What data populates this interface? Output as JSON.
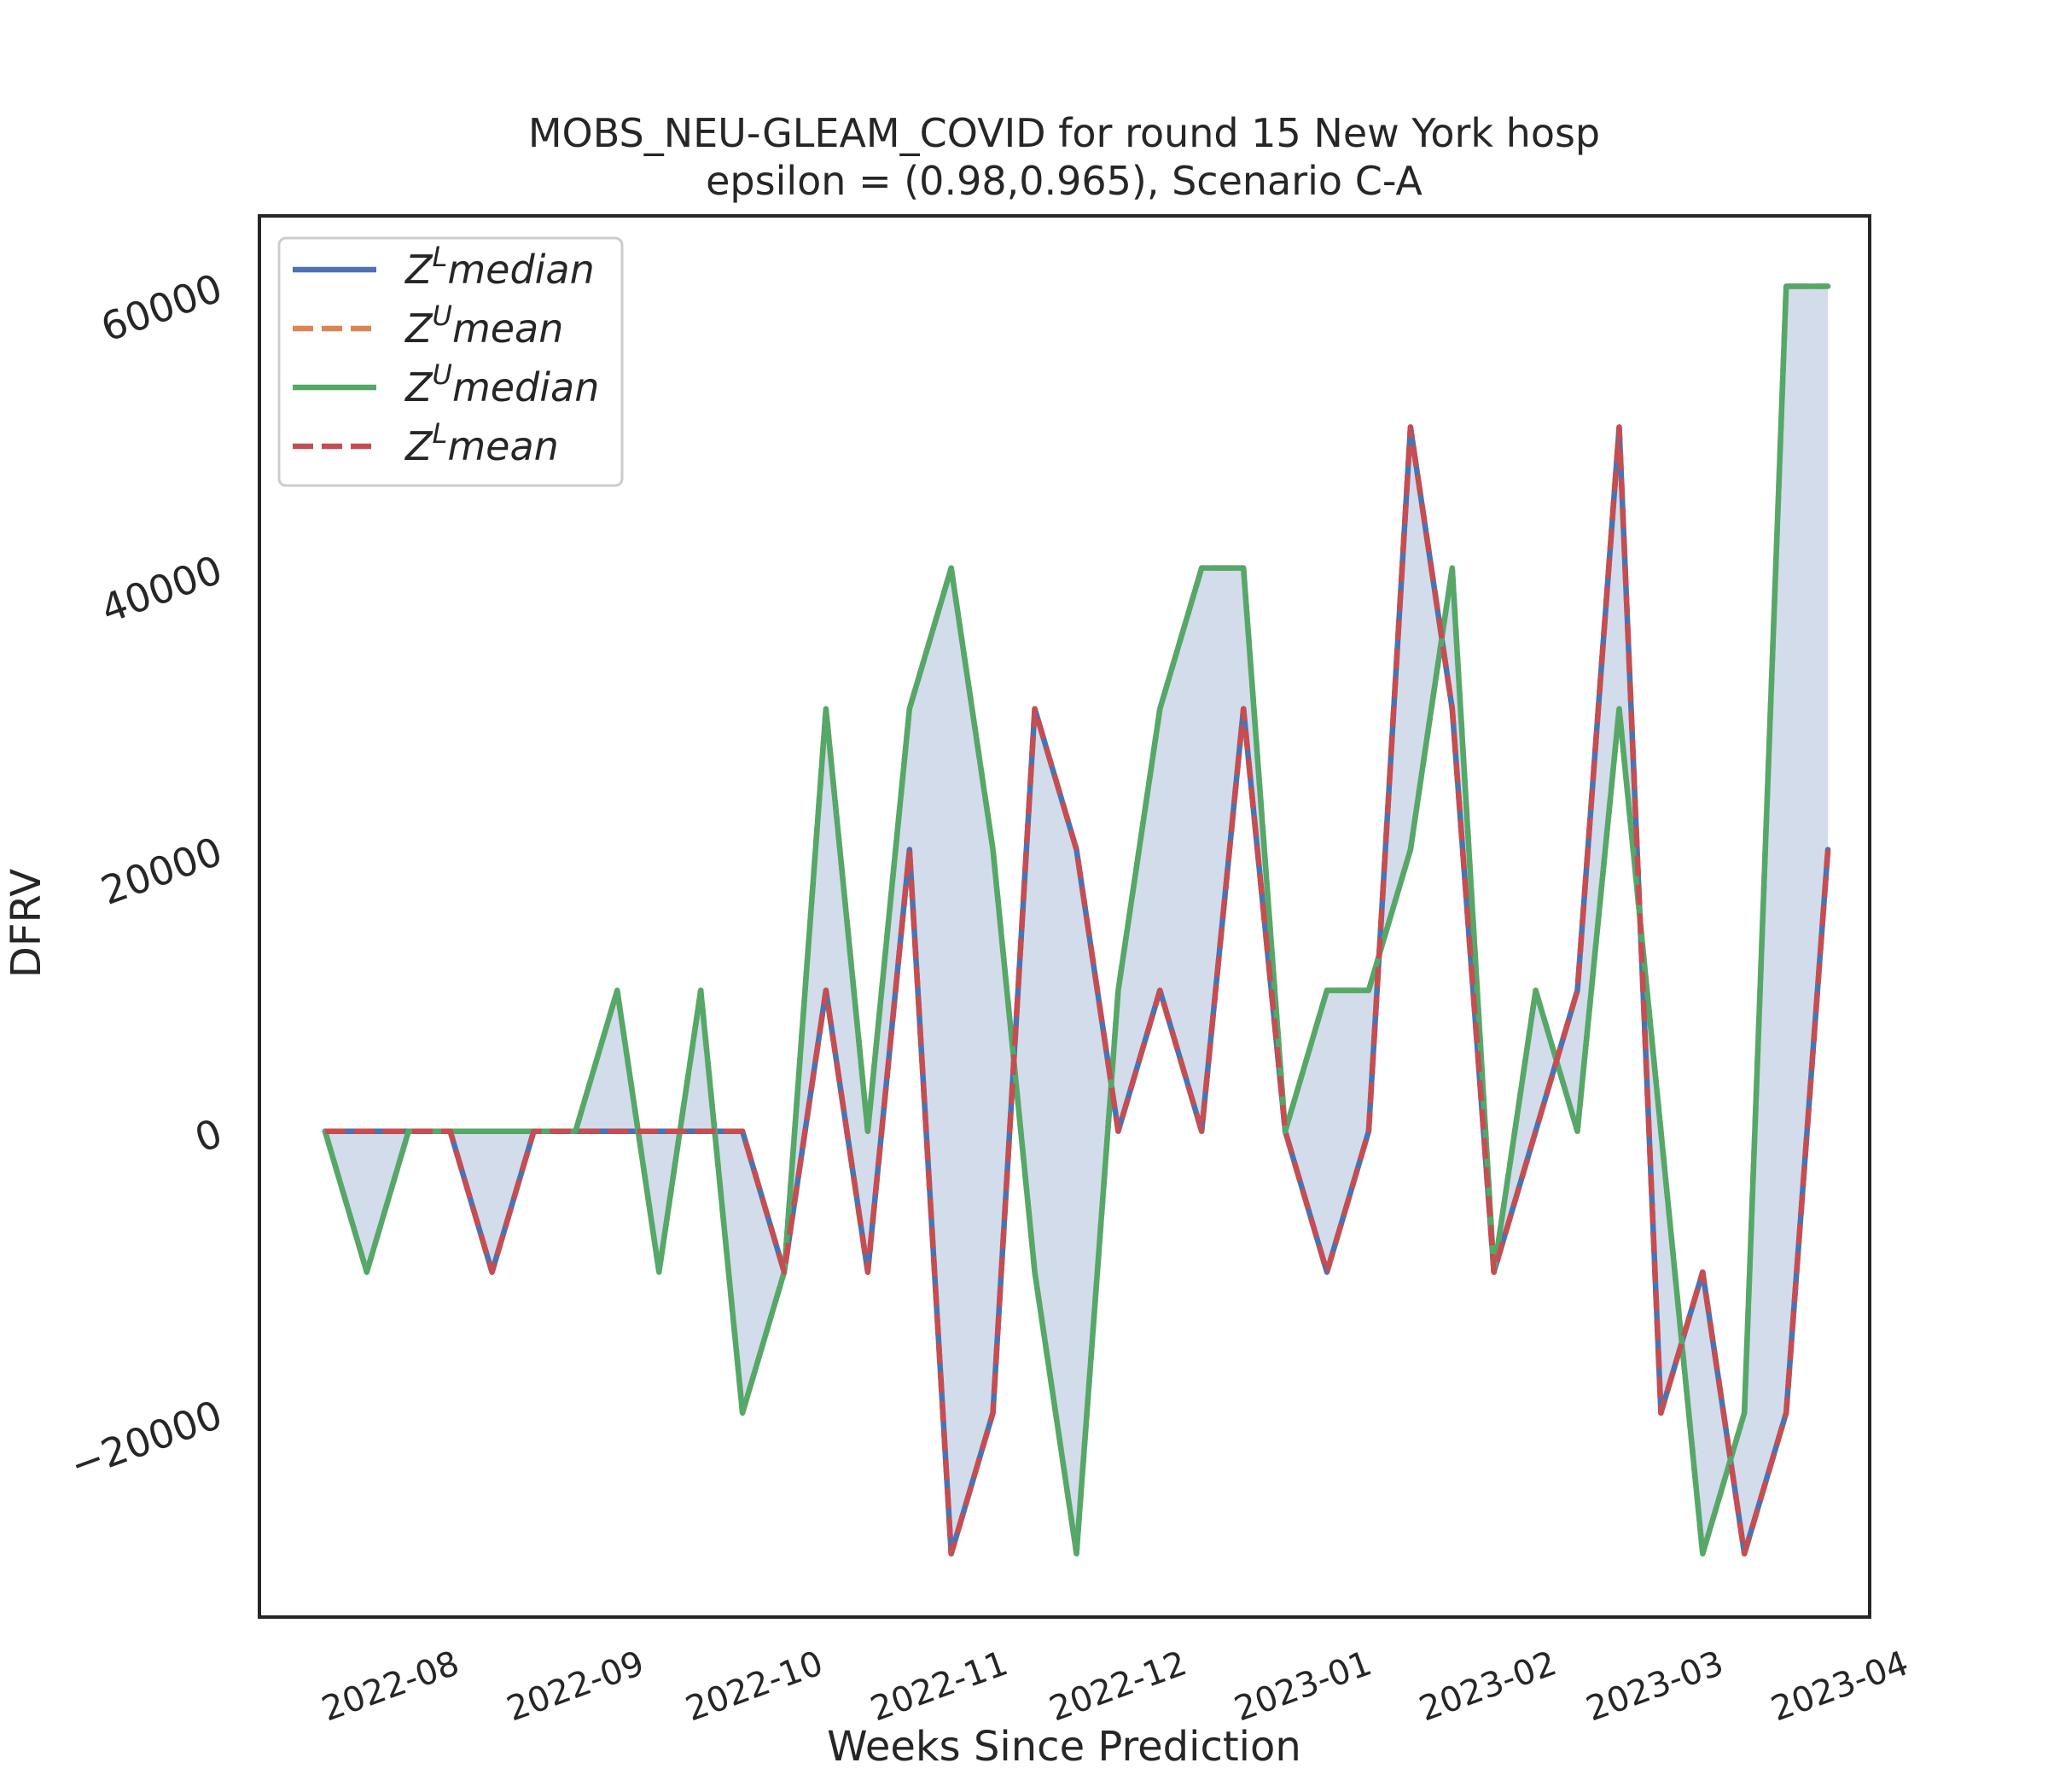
{
  "chart_data": {
    "type": "line",
    "title": "MOBS_NEU-GLEAM_COVID for round 15 New York  hosp",
    "subtitle": "epsilon = (0.98,0.965), Scenario C-A",
    "xlabel": "Weeks Since Prediction",
    "ylabel": "DFRV",
    "x_type": "date",
    "xlim": [
      "2022-07-05",
      "2023-04-01"
    ],
    "ylim": [
      -34500,
      65000
    ],
    "yticks": [
      -20000,
      0,
      20000,
      40000,
      60000
    ],
    "ytick_labels": [
      "−20000",
      "0",
      "20000",
      "40000",
      "60000"
    ],
    "xticks": [
      "2022-08-01",
      "2022-09-01",
      "2022-10-01",
      "2022-11-01",
      "2022-12-01",
      "2023-01-01",
      "2023-02-01",
      "2023-03-01",
      "2023-04-01"
    ],
    "xtick_labels": [
      "2022-08",
      "2022-09",
      "2022-10",
      "2022-11",
      "2022-12",
      "2023-01",
      "2023-02",
      "2023-03",
      "2023-04"
    ],
    "grid": false,
    "legend_position": "top-left",
    "fill_between": {
      "series": [
        "Z^L median",
        "Z^U median"
      ],
      "color": "#4c72b0",
      "opacity": 0.25
    },
    "x": [
      "2022-07-16",
      "2022-07-23",
      "2022-07-30",
      "2022-08-06",
      "2022-08-13",
      "2022-08-20",
      "2022-08-27",
      "2022-09-03",
      "2022-09-10",
      "2022-09-17",
      "2022-09-24",
      "2022-10-01",
      "2022-10-08",
      "2022-10-15",
      "2022-10-22",
      "2022-10-29",
      "2022-11-05",
      "2022-11-12",
      "2022-11-19",
      "2022-11-26",
      "2022-12-03",
      "2022-12-10",
      "2022-12-17",
      "2022-12-24",
      "2022-12-31",
      "2023-01-07",
      "2023-01-14",
      "2023-01-21",
      "2023-01-28",
      "2023-02-04",
      "2023-02-11",
      "2023-02-18",
      "2023-02-25",
      "2023-03-04",
      "2023-03-11",
      "2023-03-18",
      "2023-03-25"
    ],
    "series": [
      {
        "name": "Z^L median",
        "legend_base": "Z",
        "legend_sup": "L",
        "legend_rest": "median",
        "color": "#4c72b0",
        "dash": "solid",
        "values": [
          0,
          0,
          0,
          0,
          -10000,
          0,
          0,
          0,
          0,
          0,
          0,
          -10000,
          10000,
          -10000,
          20000,
          -30000,
          -20000,
          30000,
          20000,
          0,
          10000,
          0,
          30000,
          0,
          -10000,
          0,
          50000,
          30000,
          -10000,
          0,
          10000,
          50000,
          -20000,
          -10000,
          -30000,
          -20000,
          20000
        ]
      },
      {
        "name": "Z^U mean",
        "legend_base": "Z",
        "legend_sup": "U",
        "legend_rest": "mean",
        "color": "#dd8452",
        "dash": "dashed",
        "values": [
          0,
          -10000,
          0,
          0,
          0,
          0,
          0,
          10000,
          -10000,
          10000,
          -20000,
          -10000,
          30000,
          0,
          30000,
          40000,
          20000,
          -10000,
          -30000,
          10000,
          30000,
          40000,
          40000,
          0,
          10000,
          10000,
          20000,
          40000,
          -10000,
          10000,
          0,
          30000,
          0,
          -30000,
          -20000,
          60000,
          60000
        ]
      },
      {
        "name": "Z^U median",
        "legend_base": "Z",
        "legend_sup": "U",
        "legend_rest": "median",
        "color": "#55a868",
        "dash": "solid",
        "values": [
          0,
          -10000,
          0,
          0,
          0,
          0,
          0,
          10000,
          -10000,
          10000,
          -20000,
          -10000,
          30000,
          0,
          30000,
          40000,
          20000,
          -10000,
          -30000,
          10000,
          30000,
          40000,
          40000,
          0,
          10000,
          10000,
          20000,
          40000,
          -10000,
          10000,
          0,
          30000,
          0,
          -30000,
          -20000,
          60000,
          60000
        ]
      },
      {
        "name": "Z^L mean",
        "legend_base": "Z",
        "legend_sup": "L",
        "legend_rest": "mean",
        "color": "#c44e52",
        "dash": "dashed",
        "values": [
          0,
          0,
          0,
          0,
          -10000,
          0,
          0,
          0,
          0,
          0,
          0,
          -10000,
          10000,
          -10000,
          20000,
          -30000,
          -20000,
          30000,
          20000,
          0,
          10000,
          0,
          30000,
          0,
          -10000,
          0,
          50000,
          30000,
          -10000,
          0,
          10000,
          50000,
          -20000,
          -10000,
          -30000,
          -20000,
          20000
        ]
      }
    ]
  }
}
